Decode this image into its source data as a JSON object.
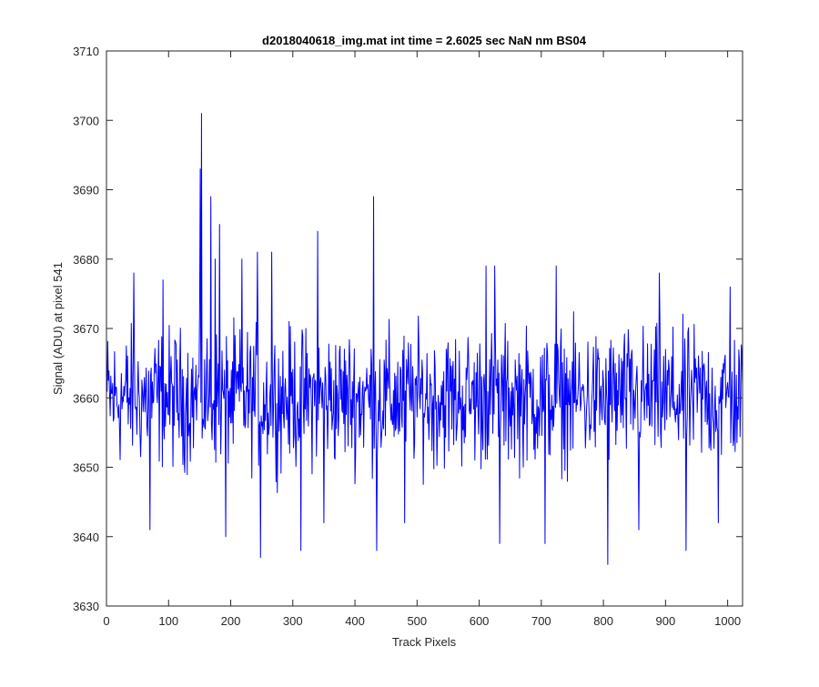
{
  "chart_data": {
    "type": "line",
    "title": "d2018040618_img.mat int time = 2.6025 sec  NaN nm BS04",
    "xlabel": "Track Pixels",
    "ylabel": "Signal (ADU) at pixel 541",
    "xlim": [
      0,
      1024
    ],
    "ylim": [
      3630,
      3710
    ],
    "xticks": [
      0,
      100,
      200,
      300,
      400,
      500,
      600,
      700,
      800,
      900,
      1000
    ],
    "yticks": [
      3630,
      3640,
      3650,
      3660,
      3670,
      3680,
      3690,
      3700,
      3710
    ],
    "grid": false,
    "legend": "none",
    "series": [
      {
        "color": "#0000ff",
        "x_start": 1,
        "x_step": 1,
        "noise_center": 3660,
        "noise_amplitude": 9,
        "length": 1024,
        "peaks": [
          {
            "x": 153,
            "y": 3701
          },
          {
            "x": 151,
            "y": 3693
          },
          {
            "x": 168,
            "y": 3689
          },
          {
            "x": 430,
            "y": 3689
          },
          {
            "x": 182,
            "y": 3685
          },
          {
            "x": 340,
            "y": 3684
          },
          {
            "x": 175,
            "y": 3680
          },
          {
            "x": 218,
            "y": 3680
          },
          {
            "x": 243,
            "y": 3681
          },
          {
            "x": 266,
            "y": 3681
          },
          {
            "x": 44,
            "y": 3678
          },
          {
            "x": 91,
            "y": 3677
          },
          {
            "x": 611,
            "y": 3679
          },
          {
            "x": 625,
            "y": 3679
          },
          {
            "x": 724,
            "y": 3679
          },
          {
            "x": 890,
            "y": 3678
          },
          {
            "x": 1004,
            "y": 3676
          },
          {
            "x": 807,
            "y": 3636
          },
          {
            "x": 248,
            "y": 3637
          },
          {
            "x": 313,
            "y": 3638
          },
          {
            "x": 435,
            "y": 3638
          },
          {
            "x": 933,
            "y": 3638
          },
          {
            "x": 633,
            "y": 3639
          },
          {
            "x": 192,
            "y": 3640
          },
          {
            "x": 70,
            "y": 3641
          },
          {
            "x": 350,
            "y": 3642
          },
          {
            "x": 480,
            "y": 3642
          },
          {
            "x": 706,
            "y": 3639
          },
          {
            "x": 857,
            "y": 3641
          },
          {
            "x": 985,
            "y": 3642
          }
        ]
      }
    ]
  }
}
